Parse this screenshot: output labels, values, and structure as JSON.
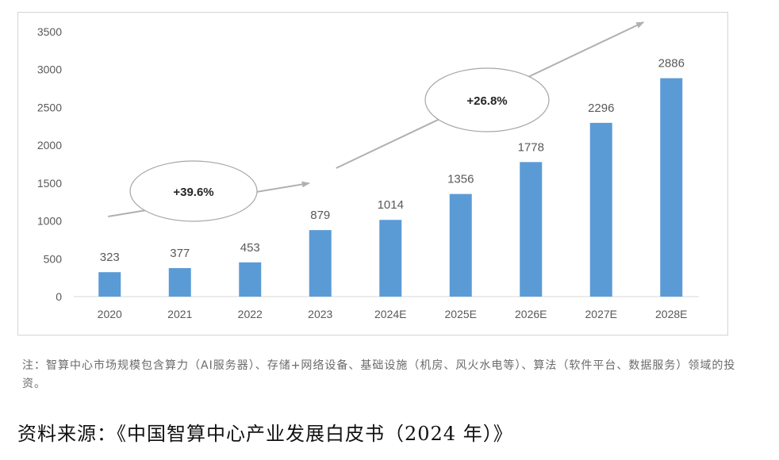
{
  "chart_data": {
    "type": "bar",
    "categories": [
      "2020",
      "2021",
      "2022",
      "2023",
      "2024E",
      "2025E",
      "2026E",
      "2027E",
      "2028E"
    ],
    "values": [
      323,
      377,
      453,
      879,
      1014,
      1356,
      1778,
      2296,
      2886
    ],
    "data_labels": [
      "323",
      "377",
      "453",
      "879",
      "1014",
      "1356",
      "1778",
      "2296",
      "2886"
    ],
    "yticks": [
      "0",
      "500",
      "1000",
      "1500",
      "2000",
      "2500",
      "3000",
      "3500"
    ],
    "ylim": [
      0,
      3500
    ],
    "grid": false,
    "bar_color": "#5b9bd5",
    "annotations": [
      {
        "text": "+39.6%",
        "from_category": "2020",
        "to_category": "2023"
      },
      {
        "text": "+26.8%",
        "from_category": "2023",
        "to_category": "2028E"
      }
    ]
  },
  "note": "注：智算中心市场规模包含算力（AI服务器）、存储+网络设备、基础设施（机房、风火水电等）、算法（软件平台、数据服务）领域的投资。",
  "source": "资料来源：《中国智算中心产业发展白皮书（2024 年）》"
}
